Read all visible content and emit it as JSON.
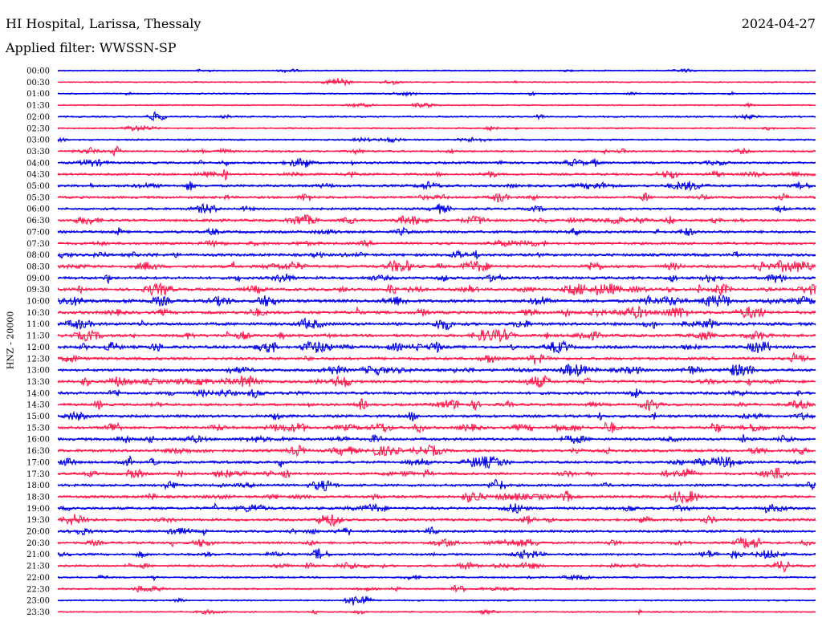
{
  "header": {
    "station": "HI Hospital, Larissa, Thessaly",
    "date": "2024-04-27",
    "filter_label": "Applied filter:",
    "filter_value": "WWSSN-SP"
  },
  "chart_data": {
    "type": "line",
    "title": "HI Hospital, Larissa, Thessaly",
    "ylabel": "HNZ - 20000",
    "trace_colors": [
      "#0000e6",
      "#ff1a4d"
    ],
    "rows": [
      {
        "label": "00:00",
        "activity": 0.15
      },
      {
        "label": "00:30",
        "activity": 0.12
      },
      {
        "label": "01:00",
        "activity": 0.15
      },
      {
        "label": "01:30",
        "activity": 0.15
      },
      {
        "label": "02:00",
        "activity": 0.3
      },
      {
        "label": "02:30",
        "activity": 0.25
      },
      {
        "label": "03:00",
        "activity": 0.3
      },
      {
        "label": "03:30",
        "activity": 0.45
      },
      {
        "label": "04:00",
        "activity": 0.6
      },
      {
        "label": "04:30",
        "activity": 0.6
      },
      {
        "label": "05:00",
        "activity": 0.7
      },
      {
        "label": "05:30",
        "activity": 0.7
      },
      {
        "label": "06:00",
        "activity": 0.65
      },
      {
        "label": "06:30",
        "activity": 0.7
      },
      {
        "label": "07:00",
        "activity": 0.75
      },
      {
        "label": "07:30",
        "activity": 0.75
      },
      {
        "label": "08:00",
        "activity": 0.85
      },
      {
        "label": "08:30",
        "activity": 0.9
      },
      {
        "label": "09:00",
        "activity": 0.85
      },
      {
        "label": "09:30",
        "activity": 0.9
      },
      {
        "label": "10:00",
        "activity": 1.0
      },
      {
        "label": "10:30",
        "activity": 1.0
      },
      {
        "label": "11:00",
        "activity": 0.95
      },
      {
        "label": "11:30",
        "activity": 0.95
      },
      {
        "label": "12:00",
        "activity": 0.95
      },
      {
        "label": "12:30",
        "activity": 0.9
      },
      {
        "label": "13:00",
        "activity": 0.85
      },
      {
        "label": "13:30",
        "activity": 0.85
      },
      {
        "label": "14:00",
        "activity": 0.85
      },
      {
        "label": "14:30",
        "activity": 0.8
      },
      {
        "label": "15:00",
        "activity": 0.85
      },
      {
        "label": "15:30",
        "activity": 0.8
      },
      {
        "label": "16:00",
        "activity": 0.8
      },
      {
        "label": "16:30",
        "activity": 0.85
      },
      {
        "label": "17:00",
        "activity": 0.75
      },
      {
        "label": "17:30",
        "activity": 0.75
      },
      {
        "label": "18:00",
        "activity": 0.75
      },
      {
        "label": "18:30",
        "activity": 0.8
      },
      {
        "label": "19:00",
        "activity": 0.8
      },
      {
        "label": "19:30",
        "activity": 0.75
      },
      {
        "label": "20:00",
        "activity": 0.7
      },
      {
        "label": "20:30",
        "activity": 0.65
      },
      {
        "label": "21:00",
        "activity": 0.6
      },
      {
        "label": "21:30",
        "activity": 0.55
      },
      {
        "label": "22:00",
        "activity": 0.35
      },
      {
        "label": "22:30",
        "activity": 0.3
      },
      {
        "label": "23:00",
        "activity": 0.25
      },
      {
        "label": "23:30",
        "activity": 0.2
      }
    ]
  }
}
